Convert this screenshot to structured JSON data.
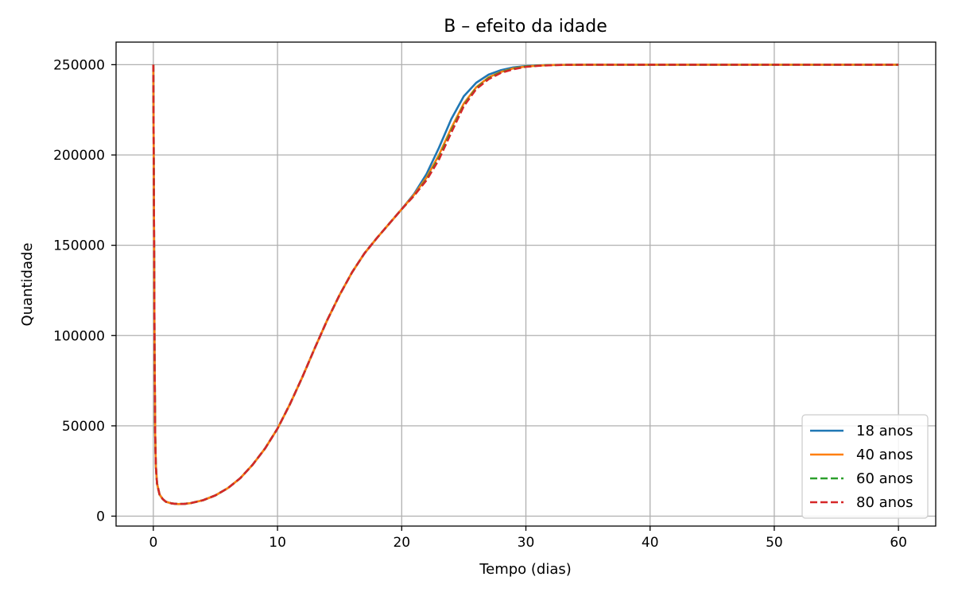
{
  "chart_data": {
    "type": "line",
    "title": "B – efeito da idade",
    "xlabel": "Tempo (dias)",
    "ylabel": "Quantidade",
    "xlim": [
      -3,
      63
    ],
    "ylim": [
      -5500,
      262500
    ],
    "xticks": [
      0,
      10,
      20,
      30,
      40,
      50,
      60
    ],
    "yticks": [
      0,
      50000,
      100000,
      150000,
      200000,
      250000
    ],
    "grid": true,
    "legend_position": "lower-right",
    "series": [
      {
        "name": "18 anos",
        "color": "#1f77b4",
        "dash": "solid",
        "x": [
          0,
          0.05,
          0.1,
          0.15,
          0.2,
          0.3,
          0.5,
          0.75,
          1,
          1.5,
          2,
          2.5,
          3,
          4,
          5,
          6,
          7,
          8,
          9,
          10,
          11,
          12,
          13,
          14,
          15,
          16,
          17,
          18,
          19,
          20,
          21,
          22,
          23,
          24,
          25,
          26,
          27,
          28,
          29,
          30,
          31,
          32,
          33,
          34,
          35,
          40,
          45,
          50,
          55,
          60
        ],
        "y": [
          250000,
          170000,
          90000,
          45000,
          28000,
          18000,
          12000,
          9500,
          8000,
          7000,
          6700,
          6800,
          7200,
          8800,
          11500,
          15500,
          21000,
          28500,
          37500,
          48500,
          62000,
          77000,
          93000,
          108500,
          122500,
          135000,
          145500,
          154000,
          162000,
          170000,
          178500,
          189500,
          204000,
          220000,
          232500,
          240000,
          244500,
          247000,
          248500,
          249200,
          249600,
          249800,
          249900,
          249950,
          250000,
          250000,
          250000,
          250000,
          250000,
          250000
        ]
      },
      {
        "name": "40 anos",
        "color": "#ff7f0e",
        "dash": "solid",
        "x": [
          0,
          0.05,
          0.1,
          0.15,
          0.2,
          0.3,
          0.5,
          0.75,
          1,
          1.5,
          2,
          2.5,
          3,
          4,
          5,
          6,
          7,
          8,
          9,
          10,
          11,
          12,
          13,
          14,
          15,
          16,
          17,
          18,
          19,
          20,
          21,
          22,
          23,
          24,
          25,
          26,
          27,
          28,
          29,
          30,
          31,
          32,
          33,
          34,
          35,
          40,
          45,
          50,
          55,
          60
        ],
        "y": [
          250000,
          170000,
          90000,
          45000,
          28000,
          18000,
          12000,
          9500,
          8000,
          7000,
          6700,
          6800,
          7200,
          8800,
          11500,
          15500,
          21000,
          28500,
          37500,
          48500,
          62000,
          77000,
          93000,
          108500,
          122500,
          135000,
          145500,
          154000,
          162000,
          170000,
          178000,
          187500,
          200000,
          215000,
          228500,
          237500,
          243000,
          246000,
          248000,
          249000,
          249500,
          249800,
          249900,
          249950,
          250000,
          250000,
          250000,
          250000,
          250000,
          250000
        ]
      },
      {
        "name": "60 anos",
        "color": "#2ca02c",
        "dash": "dashed",
        "x": [
          0,
          0.05,
          0.1,
          0.15,
          0.2,
          0.3,
          0.5,
          0.75,
          1,
          1.5,
          2,
          2.5,
          3,
          4,
          5,
          6,
          7,
          8,
          9,
          10,
          11,
          12,
          13,
          14,
          15,
          16,
          17,
          18,
          19,
          20,
          21,
          22,
          23,
          24,
          25,
          26,
          27,
          28,
          29,
          30,
          31,
          32,
          33,
          34,
          35,
          40,
          45,
          50,
          55,
          60
        ],
        "y": [
          250000,
          170000,
          90000,
          45000,
          28000,
          18000,
          12000,
          9500,
          8000,
          7000,
          6700,
          6800,
          7200,
          8800,
          11500,
          15500,
          21000,
          28500,
          37500,
          48500,
          62000,
          77000,
          93000,
          108500,
          122500,
          135000,
          145500,
          154000,
          162000,
          170000,
          177500,
          186500,
          198500,
          213500,
          227500,
          237000,
          242500,
          245800,
          247800,
          249000,
          249500,
          249800,
          249900,
          249950,
          250000,
          250000,
          250000,
          250000,
          250000,
          250000
        ]
      },
      {
        "name": "80 anos",
        "color": "#d62728",
        "dash": "dashed",
        "x": [
          0,
          0.05,
          0.1,
          0.15,
          0.2,
          0.3,
          0.5,
          0.75,
          1,
          1.5,
          2,
          2.5,
          3,
          4,
          5,
          6,
          7,
          8,
          9,
          10,
          11,
          12,
          13,
          14,
          15,
          16,
          17,
          18,
          19,
          20,
          21,
          22,
          23,
          24,
          25,
          26,
          27,
          28,
          29,
          30,
          31,
          32,
          33,
          34,
          35,
          40,
          45,
          50,
          55,
          60
        ],
        "y": [
          250000,
          170000,
          90000,
          45000,
          28000,
          18000,
          12000,
          9500,
          8000,
          7000,
          6700,
          6800,
          7200,
          8800,
          11500,
          15500,
          21000,
          28500,
          37500,
          48500,
          62000,
          77000,
          93000,
          108500,
          122500,
          135000,
          145500,
          154000,
          162000,
          170000,
          177500,
          186000,
          197500,
          212500,
          227000,
          236500,
          242000,
          245500,
          247500,
          248800,
          249400,
          249700,
          249900,
          249950,
          250000,
          250000,
          250000,
          250000,
          250000,
          250000
        ]
      }
    ]
  }
}
